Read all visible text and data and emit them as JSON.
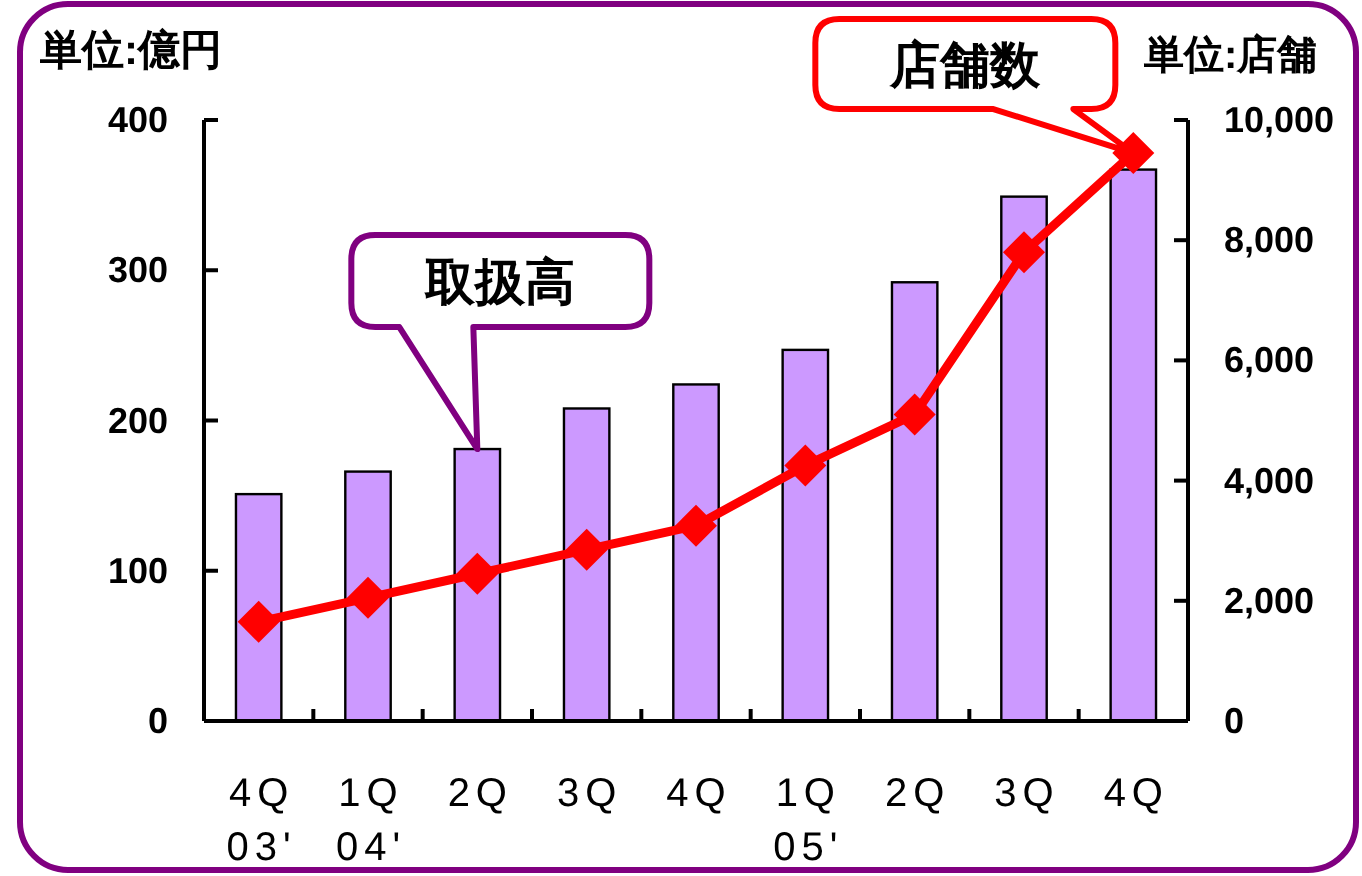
{
  "chart_data": {
    "type": "bar",
    "ylabel": "単位:億円",
    "y2label": "単位:店舗",
    "categories": [
      "4Q\n03'",
      "1Q\n04'",
      "2Q",
      "3Q",
      "4Q",
      "1Q\n05'",
      "2Q",
      "3Q",
      "4Q"
    ],
    "series": [
      {
        "name": "取扱高",
        "color": "#cc99ff",
        "values": [
          151,
          166,
          181,
          208,
          224,
          247,
          292,
          349,
          367
        ]
      },
      {
        "name": "店舗数",
        "type": "line",
        "axis": "y2",
        "color": "#ff0000",
        "values": [
          1650,
          2050,
          2450,
          2850,
          3250,
          4250,
          5100,
          7800,
          9450
        ]
      }
    ],
    "marker": "diamond",
    "line_style": "solid",
    "ylim": [
      0,
      400
    ],
    "yticks": [
      0,
      100,
      200,
      300,
      400
    ],
    "y2lim": [
      0,
      10000
    ],
    "y2ticks": [
      0,
      {
        "value": 2000,
        "label": "2,000"
      },
      {
        "value": 4000,
        "label": "4,000"
      },
      {
        "value": 6000,
        "label": "6,000"
      },
      {
        "value": 8000,
        "label": "8,000"
      },
      {
        "value": 10000,
        "label": "10,000"
      }
    ]
  }
}
